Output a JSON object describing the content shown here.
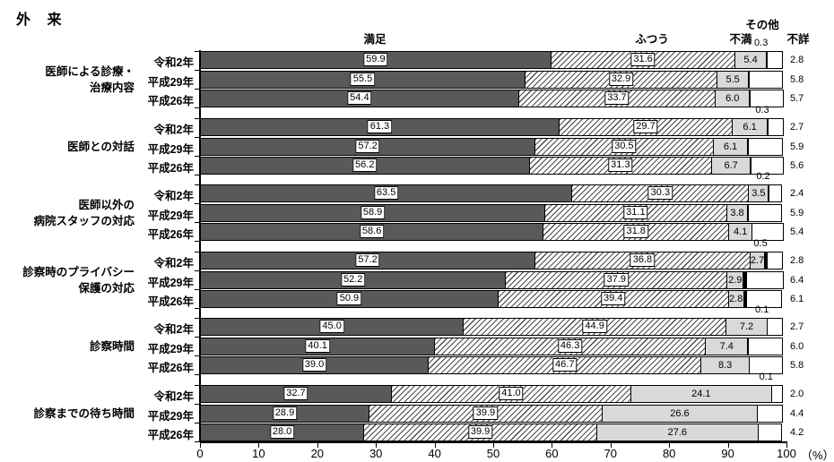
{
  "title": "外 来",
  "chart_data": {
    "type": "bar",
    "subtype": "horizontal-stacked",
    "legend_position": "column-headers-above-first-group",
    "grid": false,
    "series": [
      {
        "name": "満足",
        "color": "#595959",
        "pattern": "solid"
      },
      {
        "name": "ふつう",
        "color": "#ffffff",
        "pattern": "diagonal-hatch"
      },
      {
        "name": "不満",
        "color": "#d9d9d9",
        "pattern": "solid"
      },
      {
        "name": "その他",
        "color": "#000000",
        "pattern": "solid"
      },
      {
        "name": "不詳",
        "color": "#ffffff",
        "pattern": "solid"
      }
    ],
    "x_axis": {
      "min": 0,
      "max": 100,
      "tick_labels": [
        "0",
        "10",
        "20",
        "30",
        "40",
        "50",
        "60",
        "70",
        "80",
        "90",
        "100"
      ],
      "unit_label": "（%）"
    },
    "groups": [
      {
        "label": "医師による診療・\n治療内容",
        "rows": [
          {
            "year": "令和2年",
            "values": [
              "59.9",
              "31.6",
              "5.4",
              "0.3",
              "2.8"
            ]
          },
          {
            "year": "平成29年",
            "values": [
              "55.5",
              "32.9",
              "5.5",
              "0.3",
              "5.8"
            ]
          },
          {
            "year": "平成26年",
            "values": [
              "54.4",
              "33.7",
              "6.0",
              "0.3",
              "5.7"
            ]
          }
        ]
      },
      {
        "label": "医師との対話",
        "rows": [
          {
            "year": "令和2年",
            "values": [
              "61.3",
              "29.7",
              "6.1",
              "0.3",
              "2.7"
            ]
          },
          {
            "year": "平成29年",
            "values": [
              "57.2",
              "30.5",
              "6.1",
              "0.3",
              "5.9"
            ]
          },
          {
            "year": "平成26年",
            "values": [
              "56.2",
              "31.3",
              "6.7",
              "0.3",
              "5.6"
            ]
          }
        ]
      },
      {
        "label": "医師以外の\n病院スタッフの対応",
        "rows": [
          {
            "year": "令和2年",
            "values": [
              "63.5",
              "30.3",
              "3.5",
              "0.2",
              "2.4"
            ]
          },
          {
            "year": "平成29年",
            "values": [
              "58.9",
              "31.1",
              "3.8",
              "0.2",
              "5.9"
            ]
          },
          {
            "year": "平成26年",
            "values": [
              "58.6",
              "31.8",
              "4.1",
              "0.2",
              "5.4"
            ]
          }
        ]
      },
      {
        "label": "診察時のプライバシー\n保護の対応",
        "rows": [
          {
            "year": "令和2年",
            "values": [
              "57.2",
              "36.8",
              "2.7",
              "0.5",
              "2.8"
            ]
          },
          {
            "year": "平成29年",
            "values": [
              "52.2",
              "37.9",
              "2.9",
              "0.7",
              "6.4"
            ]
          },
          {
            "year": "平成26年",
            "values": [
              "50.9",
              "39.4",
              "2.8",
              "0.7",
              "6.1"
            ]
          }
        ]
      },
      {
        "label": "診察時間",
        "rows": [
          {
            "year": "令和2年",
            "values": [
              "45.0",
              "44.9",
              "7.2",
              "0.1",
              "2.7"
            ]
          },
          {
            "year": "平成29年",
            "values": [
              "40.1",
              "46.3",
              "7.4",
              "0.2",
              "6.0"
            ]
          },
          {
            "year": "平成26年",
            "values": [
              "39.0",
              "46.7",
              "8.3",
              "0.2",
              "5.8"
            ]
          }
        ]
      },
      {
        "label": "診察までの待ち時間",
        "rows": [
          {
            "year": "令和2年",
            "values": [
              "32.7",
              "41.0",
              "24.1",
              "0.1",
              "2.0"
            ]
          },
          {
            "year": "平成29年",
            "values": [
              "28.9",
              "39.9",
              "26.6",
              "0.2",
              "4.4"
            ]
          },
          {
            "year": "平成26年",
            "values": [
              "28.0",
              "39.9",
              "27.6",
              "0.2",
              "4.2"
            ]
          }
        ]
      }
    ]
  }
}
